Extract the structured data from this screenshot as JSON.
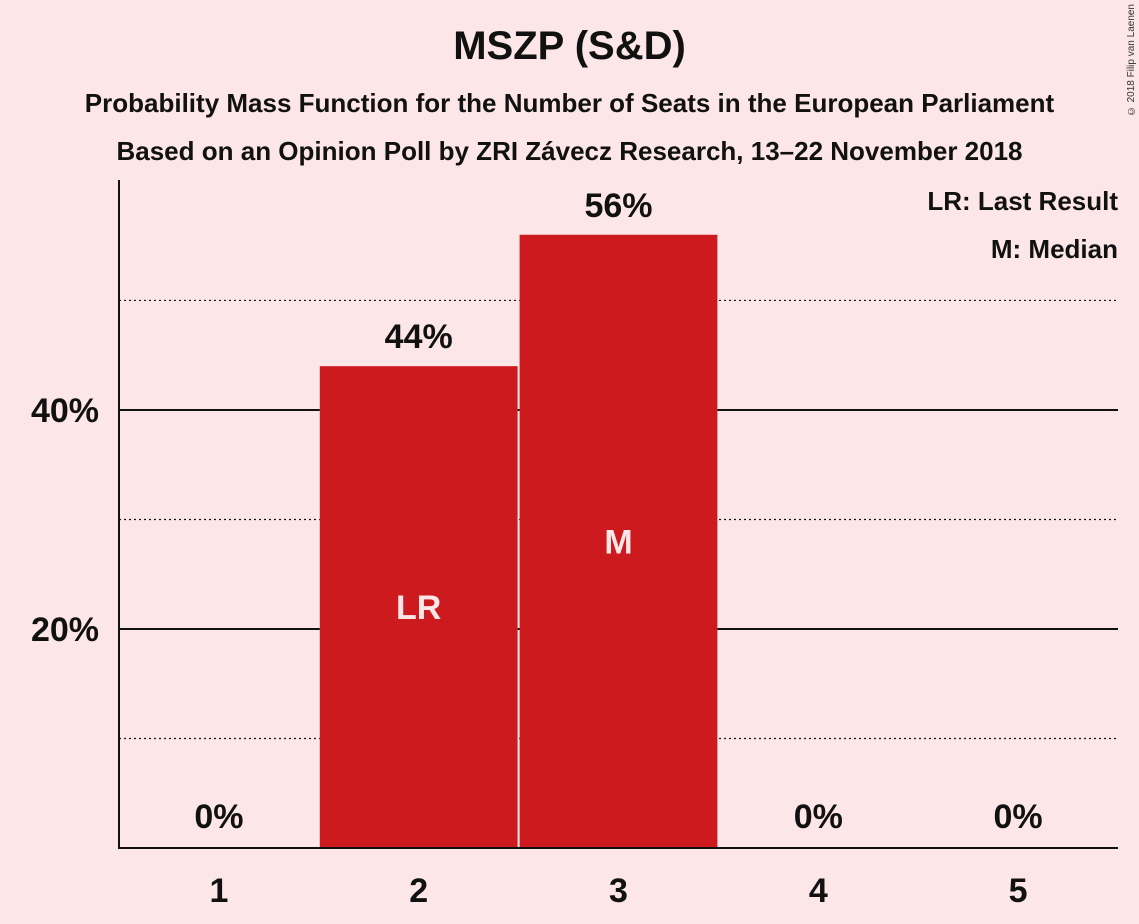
{
  "title": "MSZP (S&D)",
  "subtitle_1": "Probability Mass Function for the Number of Seats in the European Parliament",
  "subtitle_2": "Based on an Opinion Poll by ZRI Závecz Research, 13–22 November 2018",
  "copyright": "© 2018 Filip van Laenen",
  "legend": {
    "last_result": "LR: Last Result",
    "median": "M: Median"
  },
  "colors": {
    "background": "#fce6e8",
    "bar": "#cc1a1e",
    "text": "#111111"
  },
  "chart_data": {
    "type": "bar",
    "categories": [
      "1",
      "2",
      "3",
      "4",
      "5"
    ],
    "values": [
      0,
      44,
      56,
      0,
      0
    ],
    "value_labels": [
      "0%",
      "44%",
      "56%",
      "0%",
      "0%"
    ],
    "bar_marks": [
      "",
      "LR",
      "M",
      "",
      ""
    ],
    "y_ticks": [
      {
        "value": 20,
        "label": "20%"
      },
      {
        "value": 40,
        "label": "40%"
      }
    ],
    "y_minor_gridlines": [
      10,
      30,
      50
    ],
    "ylim": [
      0,
      61
    ],
    "legend_position": "top-right"
  }
}
